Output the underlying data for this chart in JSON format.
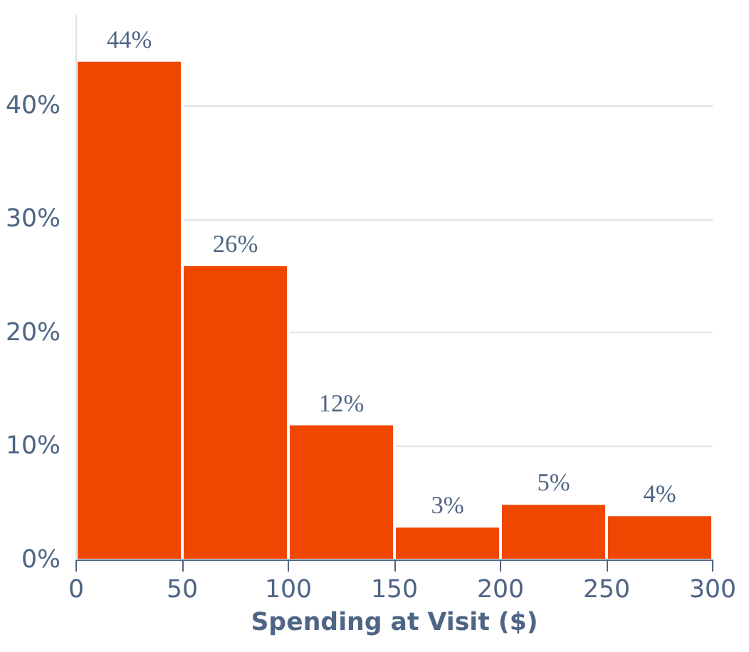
{
  "chart_data": {
    "type": "histogram",
    "xlabel": "Spending at Visit ($)",
    "bins": [
      0,
      50,
      100,
      150,
      200,
      250,
      300
    ],
    "values": [
      44,
      26,
      12,
      3,
      5,
      4
    ],
    "value_labels": [
      "44%",
      "26%",
      "12%",
      "3%",
      "5%",
      "4%"
    ],
    "color": "#ef4700",
    "xlim": [
      0,
      300
    ],
    "xticks": [
      0,
      50,
      100,
      150,
      200,
      250,
      300
    ],
    "ylim": [
      0,
      48
    ],
    "yticks": [
      {
        "value": 0,
        "label": "0%"
      },
      {
        "value": 10,
        "label": "10%"
      },
      {
        "value": 20,
        "label": "20%"
      },
      {
        "value": 30,
        "label": "30%"
      },
      {
        "value": 40,
        "label": "40%"
      }
    ],
    "grid": "y"
  }
}
